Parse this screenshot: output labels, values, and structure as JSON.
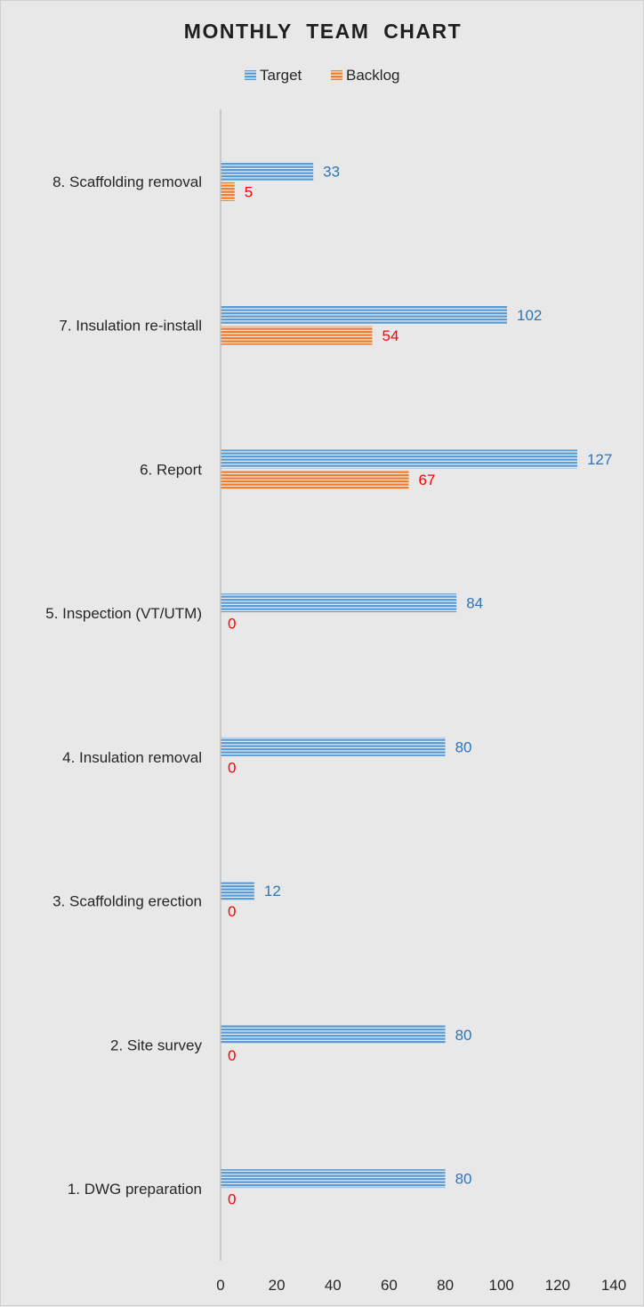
{
  "chart_data": {
    "type": "bar",
    "orientation": "horizontal",
    "title": "MONTHLY  TEAM  CHART",
    "xlabel": "",
    "ylabel": "",
    "categories": [
      "1. DWG preparation",
      "2. Site survey",
      "3. Scaffolding erection",
      "4. Insulation removal",
      "5. Inspection (VT/UTM)",
      "6. Report",
      "7. Insulation re-install",
      "8. Scaffolding removal"
    ],
    "series": [
      {
        "name": "Target",
        "values": [
          80,
          80,
          12,
          80,
          84,
          127,
          102,
          33
        ],
        "color": "#5b9bd5",
        "label_color": "#2e75b6"
      },
      {
        "name": "Backlog",
        "values": [
          0,
          0,
          0,
          0,
          0,
          67,
          54,
          5
        ],
        "color": "#ed7d31",
        "label_color": "#ff0000"
      }
    ],
    "xlim": [
      0,
      140
    ],
    "xticks": [
      0,
      20,
      40,
      60,
      80,
      100,
      120,
      140
    ],
    "grid": false,
    "legend_position": "top",
    "bar_pattern": "horizontal-stripes",
    "colors": {
      "background": "#e8e8e8",
      "axis": "#bfbfbf",
      "text": "#262626"
    }
  }
}
